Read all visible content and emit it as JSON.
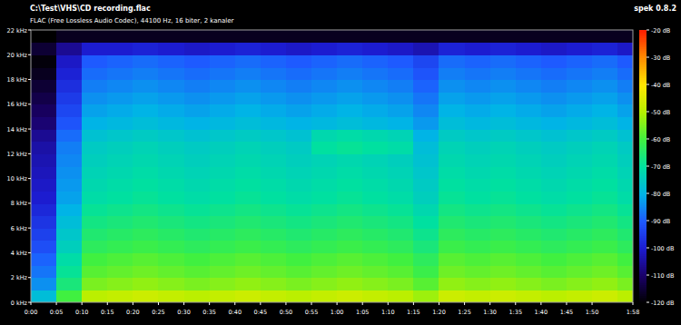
{
  "chart_data": {
    "type": "heatmap",
    "title": "C:\\Test\\VHS\\CD recording.flac",
    "subtitle": "FLAC (Free Lossless Audio Codec), 44100 Hz, 16 biter, 2 kanaler",
    "annotations": [
      "spek 0.8.2"
    ],
    "x": [
      0,
      5,
      10,
      15,
      20,
      25,
      30,
      35,
      40,
      45,
      50,
      55,
      60,
      65,
      70,
      75,
      80,
      85,
      90,
      95,
      100,
      105,
      110,
      115
    ],
    "y": [
      0,
      1,
      2,
      3,
      4,
      5,
      6,
      7,
      8,
      9,
      10,
      11,
      12,
      13,
      14,
      15,
      16,
      17,
      18,
      19,
      20,
      21
    ],
    "xlim": [
      0,
      118
    ],
    "ylim": [
      0,
      22
    ],
    "xticks": [
      {
        "value": 0,
        "label": "0:00"
      },
      {
        "value": 5,
        "label": "0:05"
      },
      {
        "value": 10,
        "label": "0:10"
      },
      {
        "value": 15,
        "label": "0:15"
      },
      {
        "value": 20,
        "label": "0:20"
      },
      {
        "value": 25,
        "label": "0:25"
      },
      {
        "value": 30,
        "label": "0:30"
      },
      {
        "value": 35,
        "label": "0:35"
      },
      {
        "value": 40,
        "label": "0:40"
      },
      {
        "value": 45,
        "label": "0:45"
      },
      {
        "value": 50,
        "label": "0:50"
      },
      {
        "value": 55,
        "label": "0:55"
      },
      {
        "value": 60,
        "label": "1:00"
      },
      {
        "value": 65,
        "label": "1:05"
      },
      {
        "value": 70,
        "label": "1:10"
      },
      {
        "value": 75,
        "label": "1:15"
      },
      {
        "value": 80,
        "label": "1:20"
      },
      {
        "value": 85,
        "label": "1:25"
      },
      {
        "value": 90,
        "label": "1:30"
      },
      {
        "value": 95,
        "label": "1:35"
      },
      {
        "value": 100,
        "label": "1:40"
      },
      {
        "value": 105,
        "label": "1:45"
      },
      {
        "value": 110,
        "label": "1:50"
      },
      {
        "value": 118,
        "label": "1:58"
      }
    ],
    "yticks": [
      {
        "value": 0,
        "label": "0 kHz"
      },
      {
        "value": 2,
        "label": "2 kHz"
      },
      {
        "value": 4,
        "label": "4 kHz"
      },
      {
        "value": 6,
        "label": "6 kHz"
      },
      {
        "value": 8,
        "label": "8 kHz"
      },
      {
        "value": 10,
        "label": "10 kHz"
      },
      {
        "value": 12,
        "label": "12 kHz"
      },
      {
        "value": 14,
        "label": "14 kHz"
      },
      {
        "value": 16,
        "label": "16 kHz"
      },
      {
        "value": 18,
        "label": "18 kHz"
      },
      {
        "value": 20,
        "label": "20 kHz"
      },
      {
        "value": 22,
        "label": "22 kHz"
      }
    ],
    "cells": [
      [
        -78,
        -60,
        -49,
        -48,
        -47,
        -48,
        -49,
        -48,
        -47,
        -48,
        -49,
        -48,
        -47,
        -48,
        -49,
        -52,
        -47,
        -48,
        -47,
        -48,
        -49,
        -48,
        -47,
        -49
      ],
      [
        -84,
        -66,
        -55,
        -54,
        -53,
        -54,
        -55,
        -54,
        -53,
        -54,
        -55,
        -54,
        -53,
        -54,
        -55,
        -58,
        -53,
        -54,
        -53,
        -54,
        -55,
        -54,
        -53,
        -55
      ],
      [
        -87,
        -69,
        -58,
        -57,
        -56,
        -57,
        -58,
        -57,
        -56,
        -57,
        -58,
        -57,
        -56,
        -57,
        -58,
        -61,
        -56,
        -57,
        -56,
        -57,
        -58,
        -57,
        -56,
        -58
      ],
      [
        -89,
        -71,
        -60,
        -59,
        -58,
        -59,
        -60,
        -59,
        -58,
        -59,
        -60,
        -59,
        -58,
        -59,
        -60,
        -63,
        -58,
        -59,
        -58,
        -59,
        -60,
        -59,
        -58,
        -60
      ],
      [
        -92,
        -74,
        -63,
        -62,
        -61,
        -62,
        -63,
        -62,
        -61,
        -62,
        -63,
        -62,
        -61,
        -62,
        -63,
        -66,
        -61,
        -62,
        -61,
        -62,
        -63,
        -62,
        -61,
        -63
      ],
      [
        -94,
        -76,
        -65,
        -64,
        -63,
        -64,
        -65,
        -64,
        -63,
        -64,
        -65,
        -64,
        -63,
        -64,
        -65,
        -68,
        -63,
        -64,
        -63,
        -64,
        -65,
        -64,
        -63,
        -65
      ],
      [
        -96,
        -78,
        -67,
        -66,
        -65,
        -66,
        -67,
        -66,
        -65,
        -66,
        -67,
        -66,
        -65,
        -66,
        -67,
        -70,
        -65,
        -66,
        -65,
        -66,
        -67,
        -66,
        -65,
        -67
      ],
      [
        -98,
        -80,
        -69,
        -68,
        -67,
        -68,
        -69,
        -68,
        -67,
        -68,
        -69,
        -68,
        -67,
        -68,
        -69,
        -72,
        -67,
        -68,
        -67,
        -68,
        -69,
        -68,
        -67,
        -69
      ],
      [
        -100,
        -82,
        -71,
        -70,
        -69,
        -70,
        -71,
        -70,
        -69,
        -70,
        -71,
        -70,
        -69,
        -70,
        -71,
        -74,
        -69,
        -70,
        -69,
        -70,
        -71,
        -70,
        -69,
        -71
      ],
      [
        -101,
        -83,
        -72,
        -71,
        -70,
        -71,
        -72,
        -71,
        -70,
        -71,
        -72,
        -71,
        -70,
        -71,
        -72,
        -75,
        -70,
        -71,
        -70,
        -71,
        -72,
        -71,
        -70,
        -72
      ],
      [
        -102,
        -84,
        -73,
        -72,
        -71,
        -72,
        -73,
        -72,
        -71,
        -72,
        -73,
        -72,
        -71,
        -72,
        -73,
        -76,
        -71,
        -72,
        -71,
        -72,
        -73,
        -72,
        -71,
        -73
      ],
      [
        -103,
        -85,
        -74,
        -73,
        -72,
        -73,
        -74,
        -73,
        -72,
        -73,
        -74,
        -73,
        -72,
        -73,
        -74,
        -77,
        -72,
        -73,
        -72,
        -73,
        -74,
        -73,
        -72,
        -74
      ],
      [
        -104,
        -86,
        -75,
        -74,
        -73,
        -74,
        -75,
        -74,
        -73,
        -74,
        -75,
        -70,
        -69,
        -70,
        -71,
        -78,
        -73,
        -74,
        -73,
        -74,
        -75,
        -74,
        -73,
        -75
      ],
      [
        -106,
        -88,
        -77,
        -76,
        -75,
        -76,
        -77,
        -76,
        -75,
        -76,
        -77,
        -72,
        -71,
        -72,
        -73,
        -80,
        -75,
        -76,
        -75,
        -76,
        -77,
        -76,
        -75,
        -77
      ],
      [
        -109,
        -91,
        -80,
        -79,
        -78,
        -79,
        -80,
        -79,
        -78,
        -79,
        -80,
        -79,
        -78,
        -79,
        -80,
        -83,
        -78,
        -79,
        -78,
        -79,
        -80,
        -79,
        -78,
        -80
      ],
      [
        -111,
        -93,
        -82,
        -81,
        -80,
        -81,
        -82,
        -81,
        -80,
        -81,
        -82,
        -81,
        -80,
        -81,
        -82,
        -85,
        -80,
        -81,
        -80,
        -81,
        -82,
        -81,
        -80,
        -82
      ],
      [
        -113,
        -95,
        -84,
        -83,
        -82,
        -83,
        -84,
        -83,
        -82,
        -83,
        -84,
        -83,
        -82,
        -83,
        -84,
        -87,
        -82,
        -83,
        -82,
        -83,
        -84,
        -83,
        -82,
        -84
      ],
      [
        -115,
        -97,
        -86,
        -85,
        -84,
        -85,
        -86,
        -85,
        -84,
        -85,
        -86,
        -85,
        -84,
        -85,
        -86,
        -89,
        -84,
        -85,
        -84,
        -85,
        -86,
        -85,
        -84,
        -86
      ],
      [
        -117,
        -99,
        -88,
        -87,
        -86,
        -87,
        -88,
        -87,
        -86,
        -87,
        -88,
        -87,
        -86,
        -87,
        -88,
        -91,
        -86,
        -87,
        -86,
        -87,
        -88,
        -87,
        -86,
        -88
      ],
      [
        -119,
        -101,
        -90,
        -89,
        -88,
        -89,
        -90,
        -89,
        -88,
        -89,
        -90,
        -89,
        -88,
        -89,
        -90,
        -93,
        -88,
        -89,
        -88,
        -89,
        -90,
        -89,
        -88,
        -90
      ],
      [
        -115,
        -106,
        -100,
        -100,
        -99,
        -100,
        -101,
        -100,
        -99,
        -100,
        -101,
        -100,
        -99,
        -100,
        -101,
        -103,
        -99,
        -100,
        -99,
        -100,
        -101,
        -100,
        -99,
        -101
      ],
      [
        -120,
        -117,
        -117,
        -117,
        -117,
        -117,
        -117,
        -117,
        -117,
        -117,
        -117,
        -117,
        -117,
        -117,
        -117,
        -117,
        -117,
        -117,
        -117,
        -117,
        -117,
        -117,
        -117,
        -117
      ]
    ],
    "colorbar": {
      "range": [
        -120,
        -20
      ],
      "ticks": [
        {
          "value": -20,
          "label": "-20 dB"
        },
        {
          "value": -30,
          "label": "-30 dB"
        },
        {
          "value": -40,
          "label": "-40 dB"
        },
        {
          "value": -50,
          "label": "-50 dB"
        },
        {
          "value": -60,
          "label": "-60 dB"
        },
        {
          "value": -70,
          "label": "-70 dB"
        },
        {
          "value": -80,
          "label": "-80 dB"
        },
        {
          "value": -90,
          "label": "-90 dB"
        },
        {
          "value": -100,
          "label": "-100 dB"
        },
        {
          "value": -110,
          "label": "-110 dB"
        },
        {
          "value": -120,
          "label": "-120 dB"
        }
      ]
    }
  }
}
